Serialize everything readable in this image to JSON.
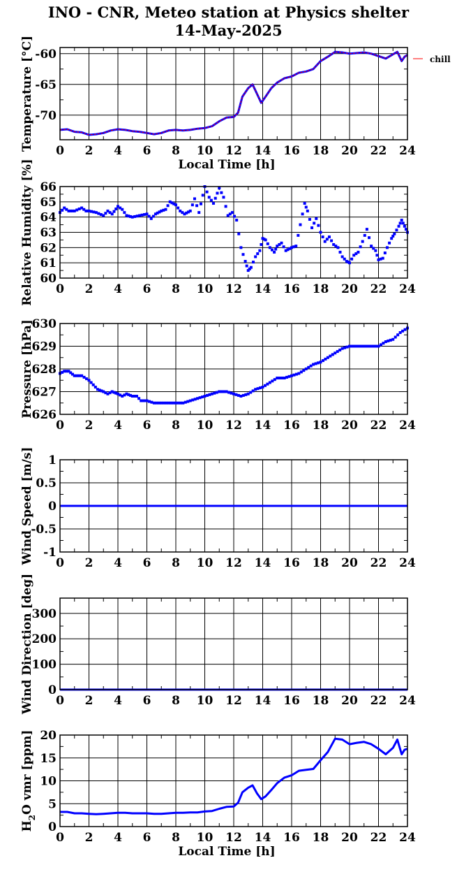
{
  "title": "INO - CNR, Meteo station at Physics shelter",
  "subtitle": "14-May-2025",
  "xlabel": "Local Time [h]",
  "colors": {
    "data": "#0000ff",
    "chill": "#ff0000",
    "grid": "#000000",
    "background": "#ffffff"
  },
  "chart_data": [
    {
      "type": "line",
      "ylabel": "Temperature [°C]",
      "xlim": [
        0,
        24
      ],
      "ylim": [
        -74,
        -59
      ],
      "yticks": [
        -70,
        -65,
        -60
      ],
      "ytick_labels": [
        "-70",
        "-65",
        "-60"
      ],
      "xticks": [
        0,
        2,
        4,
        6,
        8,
        10,
        12,
        14,
        16,
        18,
        20,
        22,
        24
      ],
      "xtick_labels": [
        "0",
        "2",
        "4",
        "6",
        "8",
        "10",
        "12",
        "14",
        "16",
        "18",
        "20",
        "22",
        "24"
      ],
      "xlabel": "Local Time [h]",
      "legend": {
        "position": "right",
        "entries": [
          {
            "label": "chill",
            "color": "#ff0000"
          }
        ]
      },
      "series": [
        {
          "x": [
            0,
            0.5,
            1,
            1.5,
            2,
            2.5,
            3,
            3.5,
            4,
            4.5,
            5,
            5.5,
            6,
            6.5,
            7,
            7.5,
            8,
            8.5,
            9,
            9.5,
            10,
            10.5,
            11,
            11.5,
            12,
            12.3,
            12.6,
            13,
            13.3,
            13.6,
            13.9,
            14.2,
            14.6,
            15,
            15.5,
            16,
            16.5,
            17,
            17.5,
            18,
            18.5,
            19,
            19.5,
            20,
            20.5,
            21,
            21.5,
            22,
            22.5,
            23,
            23.3,
            23.6,
            23.8,
            24
          ],
          "values": [
            -72.4,
            -72.3,
            -72.7,
            -72.8,
            -73.2,
            -73.1,
            -72.9,
            -72.5,
            -72.3,
            -72.4,
            -72.6,
            -72.7,
            -72.9,
            -73.1,
            -72.9,
            -72.5,
            -72.4,
            -72.5,
            -72.4,
            -72.2,
            -72.1,
            -71.8,
            -71.0,
            -70.4,
            -70.3,
            -69.6,
            -67.0,
            -65.6,
            -65.0,
            -66.5,
            -68.0,
            -67.0,
            -65.6,
            -64.7,
            -64.0,
            -63.7,
            -63.1,
            -62.9,
            -62.5,
            -61.2,
            -60.5,
            -59.7,
            -59.8,
            -60.0,
            -59.9,
            -59.8,
            -60.0,
            -60.4,
            -60.8,
            -60.1,
            -59.7,
            -61.2,
            -60.5,
            -60.2
          ]
        }
      ]
    },
    {
      "type": "scatter",
      "ylabel": "Relative Humidity [%]",
      "xlim": [
        0,
        24
      ],
      "ylim": [
        60,
        66
      ],
      "yticks": [
        60,
        61,
        62,
        63,
        64,
        65,
        66
      ],
      "ytick_labels": [
        "60",
        "61",
        "62",
        "63",
        "64",
        "65",
        "66"
      ],
      "xticks": [
        0,
        2,
        4,
        6,
        8,
        10,
        12,
        14,
        16,
        18,
        20,
        22,
        24
      ],
      "xtick_labels": [
        "0",
        "2",
        "4",
        "6",
        "8",
        "10",
        "12",
        "14",
        "16",
        "18",
        "20",
        "22",
        "24"
      ],
      "series": [
        {
          "x": [
            0,
            0.3,
            0.6,
            1,
            1.5,
            1.8,
            2,
            2.5,
            3,
            3.3,
            3.6,
            4,
            4.3,
            4.6,
            5,
            5.5,
            6,
            6.3,
            6.6,
            7,
            7.3,
            7.6,
            8,
            8.3,
            8.6,
            9,
            9.3,
            9.6,
            10,
            10.3,
            10.6,
            11,
            11.3,
            11.6,
            11.9,
            12.2,
            12.5,
            12.8,
            13,
            13.2,
            13.5,
            13.8,
            14,
            14.2,
            14.5,
            14.8,
            15,
            15.3,
            15.6,
            16,
            16.3,
            16.6,
            16.9,
            17.1,
            17.4,
            17.7,
            18,
            18.3,
            18.6,
            18.9,
            19.2,
            19.5,
            19.8,
            20,
            20.3,
            20.6,
            20.9,
            21.2,
            21.5,
            21.8,
            22,
            22.3,
            22.6,
            22.9,
            23.1,
            23.4,
            23.6,
            23.8,
            24
          ],
          "values": [
            64.3,
            64.6,
            64.4,
            64.4,
            64.6,
            64.4,
            64.4,
            64.3,
            64.1,
            64.4,
            64.2,
            64.7,
            64.5,
            64.1,
            64.0,
            64.1,
            64.2,
            63.9,
            64.2,
            64.4,
            64.5,
            65.0,
            64.8,
            64.4,
            64.2,
            64.4,
            65.2,
            64.3,
            66.0,
            65.3,
            64.9,
            65.9,
            65.3,
            64.1,
            64.3,
            63.8,
            62.0,
            61.1,
            60.5,
            60.7,
            61.4,
            61.8,
            62.6,
            62.5,
            62.0,
            61.7,
            62.1,
            62.3,
            61.8,
            62.0,
            62.1,
            63.5,
            64.9,
            64.4,
            63.3,
            63.9,
            63.0,
            62.4,
            62.7,
            62.2,
            62.0,
            61.4,
            61.1,
            61.0,
            61.5,
            61.7,
            62.4,
            63.2,
            62.1,
            61.8,
            61.2,
            61.3,
            62.0,
            62.6,
            62.9,
            63.4,
            63.8,
            63.4,
            63.0
          ]
        }
      ]
    },
    {
      "type": "scatter",
      "ylabel": "Pressure [hPa]",
      "xlim": [
        0,
        24
      ],
      "ylim": [
        626,
        630
      ],
      "yticks": [
        626,
        627,
        628,
        629,
        630
      ],
      "ytick_labels": [
        "626",
        "627",
        "628",
        "629",
        "630"
      ],
      "xticks": [
        0,
        2,
        4,
        6,
        8,
        10,
        12,
        14,
        16,
        18,
        20,
        22,
        24
      ],
      "xtick_labels": [
        "0",
        "2",
        "4",
        "6",
        "8",
        "10",
        "12",
        "14",
        "16",
        "18",
        "20",
        "22",
        "24"
      ],
      "series": [
        {
          "x": [
            0,
            0.3,
            0.6,
            1,
            1.5,
            2,
            2.3,
            2.6,
            3,
            3.3,
            3.6,
            4,
            4.3,
            4.6,
            5,
            5.3,
            5.6,
            6,
            6.5,
            7,
            7.5,
            8,
            8.5,
            9,
            9.5,
            10,
            10.5,
            11,
            11.5,
            12,
            12.5,
            13,
            13.5,
            14,
            14.5,
            15,
            15.5,
            16,
            16.5,
            17,
            17.5,
            18,
            18.5,
            19,
            19.5,
            20,
            20.5,
            21,
            21.5,
            22,
            22.5,
            23,
            23.5,
            24
          ],
          "values": [
            627.8,
            627.9,
            627.9,
            627.7,
            627.7,
            627.5,
            627.3,
            627.1,
            627.0,
            626.9,
            627.0,
            626.9,
            626.8,
            626.9,
            626.8,
            626.8,
            626.6,
            626.6,
            626.5,
            626.5,
            626.5,
            626.5,
            626.5,
            626.6,
            626.7,
            626.8,
            626.9,
            627.0,
            627.0,
            626.9,
            626.8,
            626.9,
            627.1,
            627.2,
            627.4,
            627.6,
            627.6,
            627.7,
            627.8,
            628.0,
            628.2,
            628.3,
            628.5,
            628.7,
            628.9,
            629.0,
            629.0,
            629.0,
            629.0,
            629.0,
            629.2,
            629.3,
            629.6,
            629.8
          ]
        }
      ]
    },
    {
      "type": "line",
      "ylabel": "Wind Speed [m/s]",
      "xlim": [
        0,
        24
      ],
      "ylim": [
        -1,
        1
      ],
      "yticks": [
        -1,
        -0.5,
        0,
        0.5,
        1
      ],
      "ytick_labels": [
        "-1",
        "-0.5",
        "0",
        "0.5",
        "1"
      ],
      "xticks": [
        0,
        2,
        4,
        6,
        8,
        10,
        12,
        14,
        16,
        18,
        20,
        22,
        24
      ],
      "xtick_labels": [
        "0",
        "2",
        "4",
        "6",
        "8",
        "10",
        "12",
        "14",
        "16",
        "18",
        "20",
        "22",
        "24"
      ],
      "series": [
        {
          "x": [
            0,
            24
          ],
          "values": [
            0,
            0
          ]
        }
      ]
    },
    {
      "type": "line",
      "ylabel": "Wind Direction [deg]",
      "xlim": [
        0,
        24
      ],
      "ylim": [
        0,
        360
      ],
      "yticks": [
        0,
        100,
        200,
        300
      ],
      "ytick_labels": [
        "0",
        "100",
        "200",
        "300"
      ],
      "xticks": [
        0,
        2,
        4,
        6,
        8,
        10,
        12,
        14,
        16,
        18,
        20,
        22,
        24
      ],
      "xtick_labels": [
        "0",
        "2",
        "4",
        "6",
        "8",
        "10",
        "12",
        "14",
        "16",
        "18",
        "20",
        "22",
        "24"
      ],
      "series": [
        {
          "x": [
            0,
            24
          ],
          "values": [
            0,
            0
          ]
        }
      ]
    },
    {
      "type": "line",
      "ylabel_main": "H",
      "ylabel_sub": "2",
      "ylabel_rest": "O vmr [ppm]",
      "xlim": [
        0,
        24
      ],
      "ylim": [
        0,
        20
      ],
      "yticks": [
        0,
        5,
        10,
        15,
        20
      ],
      "ytick_labels": [
        "0",
        "5",
        "10",
        "15",
        "20"
      ],
      "xticks": [
        0,
        2,
        4,
        6,
        8,
        10,
        12,
        14,
        16,
        18,
        20,
        22,
        24
      ],
      "xtick_labels": [
        "0",
        "2",
        "4",
        "6",
        "8",
        "10",
        "12",
        "14",
        "16",
        "18",
        "20",
        "22",
        "24"
      ],
      "xlabel": "Local Time [h]",
      "series": [
        {
          "x": [
            0,
            0.5,
            1,
            1.5,
            2,
            2.5,
            3,
            3.5,
            4,
            4.5,
            5,
            5.5,
            6,
            6.5,
            7,
            7.5,
            8,
            8.5,
            9,
            9.5,
            10,
            10.5,
            11,
            11.5,
            12,
            12.3,
            12.6,
            13,
            13.3,
            13.6,
            13.9,
            14.2,
            14.6,
            15,
            15.5,
            16,
            16.5,
            17,
            17.5,
            18,
            18.5,
            19,
            19.5,
            20,
            20.5,
            21,
            21.5,
            22,
            22.5,
            23,
            23.3,
            23.6,
            23.8,
            24
          ],
          "values": [
            3.2,
            3.2,
            2.9,
            2.9,
            2.8,
            2.7,
            2.8,
            2.9,
            3.0,
            3.0,
            2.9,
            2.9,
            2.9,
            2.8,
            2.8,
            2.9,
            3.0,
            3.0,
            3.1,
            3.1,
            3.3,
            3.4,
            3.9,
            4.3,
            4.4,
            5.2,
            7.5,
            8.5,
            9.0,
            7.3,
            6.0,
            6.6,
            8.0,
            9.5,
            10.7,
            11.2,
            12.2,
            12.4,
            12.6,
            14.5,
            16.3,
            19.2,
            19.0,
            18.0,
            18.3,
            18.5,
            18.0,
            17.0,
            15.8,
            17.2,
            19.0,
            15.8,
            16.8,
            17.0
          ]
        }
      ]
    }
  ]
}
